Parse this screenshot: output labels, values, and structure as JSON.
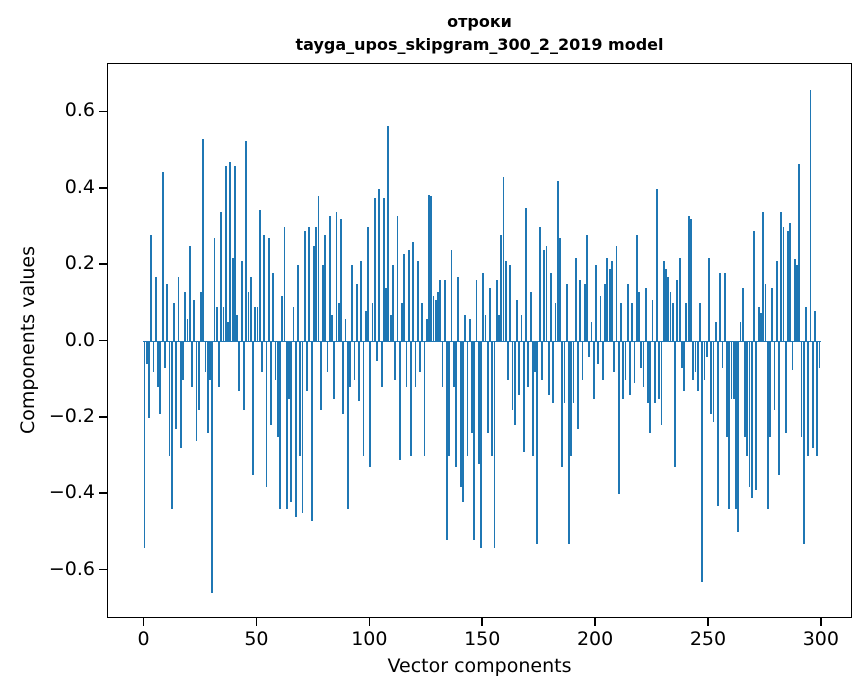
{
  "figure": {
    "title_line1": "отроки",
    "title_line2": "tayga_upos_skipgram_300_2_2019 model"
  },
  "chart_data": {
    "type": "bar",
    "title": "отроки\ntayga_upos_skipgram_300_2_2019 model",
    "xlabel": "Vector components",
    "ylabel": "Components values",
    "bar_color": "#1f77b4",
    "axis_color": "#000000",
    "background_color": "#ffffff",
    "grid": false,
    "legend_position": "none",
    "xlim": [
      -16.2,
      313.8
    ],
    "ylim": [
      -0.727,
      0.727
    ],
    "x_ticks": [
      0,
      50,
      100,
      150,
      200,
      250,
      300
    ],
    "x_tick_labels": [
      "0",
      "50",
      "100",
      "150",
      "200",
      "250",
      "300"
    ],
    "y_ticks": [
      0.6,
      0.4,
      0.2,
      0.0,
      -0.2,
      -0.4,
      -0.6
    ],
    "y_tick_labels": [
      "0.6",
      "0.4",
      "0.2",
      "0.0",
      "−0.2",
      "−0.4",
      "−0.6"
    ],
    "n_components": 300,
    "bar_width_data_units": 0.8,
    "values": [
      -0.54,
      -0.06,
      -0.2,
      0.28,
      -0.08,
      0.17,
      -0.12,
      -0.19,
      0.445,
      -0.07,
      0.15,
      -0.3,
      -0.44,
      0.1,
      -0.23,
      0.17,
      -0.28,
      -0.1,
      0.13,
      0.06,
      0.25,
      -0.12,
      0.11,
      -0.26,
      -0.18,
      0.13,
      0.53,
      -0.08,
      -0.24,
      -0.1,
      -0.66,
      0.27,
      0.09,
      -0.12,
      0.34,
      0.09,
      0.46,
      0.05,
      0.47,
      0.22,
      0.46,
      0.07,
      -0.13,
      0.21,
      -0.18,
      0.525,
      0.13,
      0.17,
      -0.35,
      0.09,
      0.09,
      0.345,
      -0.08,
      0.28,
      -0.38,
      0.27,
      -0.22,
      0.18,
      -0.1,
      -0.25,
      -0.44,
      0.12,
      0.3,
      -0.44,
      -0.15,
      -0.42,
      0.09,
      -0.46,
      0.2,
      -0.3,
      -0.45,
      0.29,
      -0.13,
      0.3,
      -0.47,
      0.25,
      0.3,
      0.38,
      -0.18,
      0.2,
      0.28,
      -0.08,
      0.33,
      0.07,
      -0.15,
      0.34,
      0.1,
      0.32,
      -0.19,
      0.06,
      -0.44,
      -0.12,
      0.2,
      -0.1,
      0.15,
      -0.155,
      0.21,
      -0.3,
      0.08,
      0.3,
      -0.33,
      0.1,
      0.375,
      -0.05,
      0.4,
      -0.12,
      0.375,
      0.14,
      0.565,
      0.07,
      0.2,
      -0.1,
      0.33,
      -0.31,
      0.1,
      0.23,
      -0.12,
      0.24,
      -0.3,
      0.26,
      -0.12,
      0.21,
      -0.08,
      0.1,
      -0.3,
      0.06,
      0.385,
      0.38,
      0.12,
      0.11,
      0.13,
      0.16,
      -0.12,
      0.16,
      -0.52,
      -0.3,
      0.24,
      -0.12,
      -0.33,
      0.17,
      -0.38,
      -0.42,
      0.07,
      -0.3,
      0.06,
      -0.24,
      -0.52,
      0.16,
      -0.32,
      -0.54,
      0.18,
      0.07,
      -0.24,
      0.14,
      -0.3,
      -0.54,
      0.16,
      0.07,
      0.28,
      0.43,
      0.21,
      -0.1,
      0.2,
      -0.18,
      -0.22,
      0.11,
      -0.14,
      0.07,
      -0.29,
      0.35,
      -0.12,
      0.13,
      -0.3,
      -0.08,
      -0.53,
      0.3,
      -0.1,
      0.24,
      0.25,
      -0.14,
      0.18,
      -0.16,
      0.1,
      0.42,
      0.27,
      -0.33,
      -0.16,
      0.15,
      -0.53,
      -0.3,
      -0.16,
      0.22,
      -0.23,
      0.16,
      -0.1,
      0.15,
      0.28,
      -0.04,
      0.05,
      -0.15,
      0.2,
      -0.06,
      0.12,
      -0.1,
      0.15,
      0.22,
      0.19,
      0.21,
      -0.08,
      0.25,
      -0.4,
      0.1,
      -0.15,
      -0.1,
      0.15,
      -0.14,
      0.1,
      -0.11,
      0.28,
      0.13,
      -0.07,
      -0.12,
      0.14,
      -0.16,
      -0.24,
      0.11,
      -0.16,
      0.4,
      -0.15,
      -0.22,
      0.21,
      0.19,
      0.17,
      0.13,
      0.1,
      -0.33,
      0.16,
      0.22,
      -0.07,
      -0.13,
      0.1,
      0.33,
      0.32,
      -0.1,
      -0.08,
      -0.13,
      0.1,
      -0.63,
      -0.1,
      -0.04,
      0.22,
      -0.19,
      -0.21,
      0.05,
      -0.43,
      0.18,
      -0.07,
      0.18,
      -0.25,
      -0.44,
      -0.15,
      -0.15,
      -0.44,
      -0.5,
      0.05,
      0.14,
      -0.25,
      -0.3,
      -0.38,
      -0.41,
      0.29,
      -0.39,
      0.09,
      0.075,
      0.34,
      0.15,
      -0.44,
      -0.25,
      0.14,
      -0.18,
      0.21,
      -0.35,
      0.34,
      0.3,
      -0.24,
      0.29,
      0.31,
      -0.075,
      0.215,
      0.2,
      0.465,
      -0.25,
      -0.53,
      0.09,
      -0.3,
      0.66,
      -0.28,
      0.08,
      -0.3,
      -0.07
    ]
  }
}
